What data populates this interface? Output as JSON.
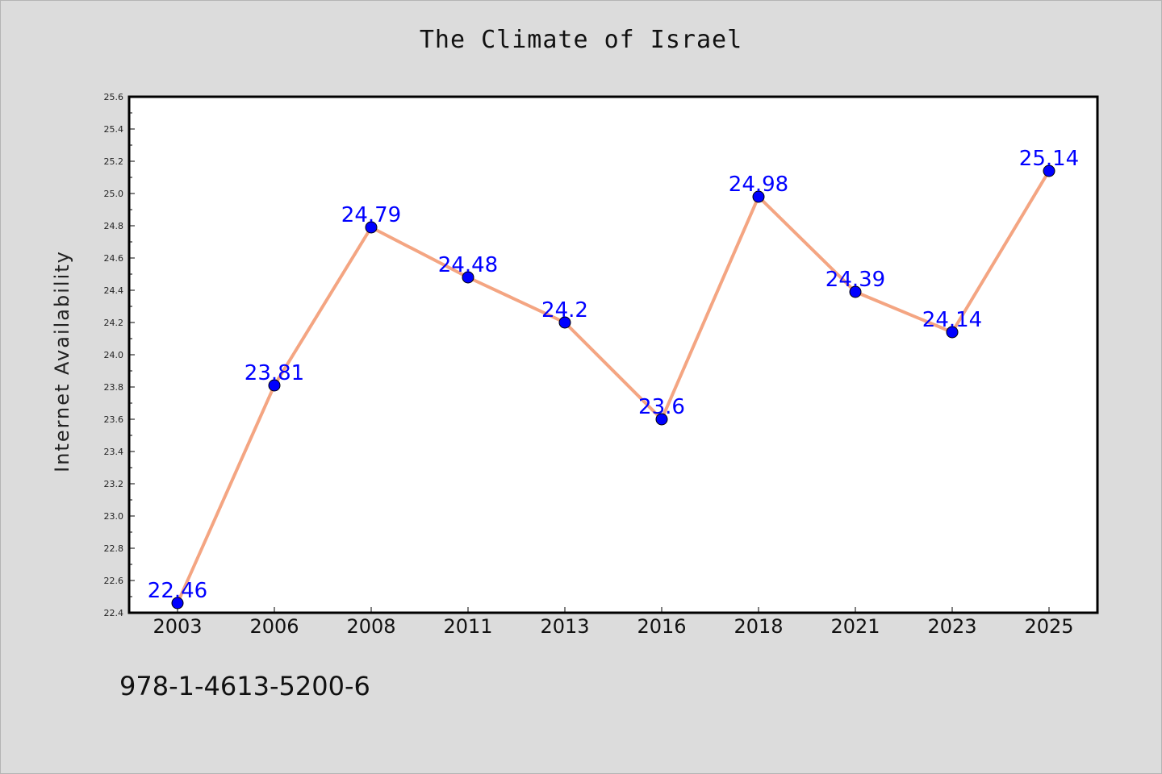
{
  "chart_data": {
    "type": "line",
    "title": "The Climate of Israel",
    "xlabel": "",
    "ylabel": "Internet Availability",
    "categories": [
      "2003",
      "2006",
      "2008",
      "2011",
      "2013",
      "2016",
      "2018",
      "2021",
      "2023",
      "2025"
    ],
    "series": [
      {
        "values": [
          22.46,
          23.81,
          24.79,
          24.48,
          24.2,
          23.6,
          24.98,
          24.39,
          24.14,
          25.14
        ],
        "data_labels": [
          "22.46",
          "23.81",
          "24.79",
          "24.48",
          "24.2",
          "23.6",
          "24.98",
          "24.39",
          "24.14",
          "25.14"
        ],
        "line_color": "#f4a582",
        "marker_color": "#0000ff"
      }
    ],
    "ylim": [
      22.4,
      25.6
    ],
    "yticks": [
      "22.4",
      "22.6",
      "22.8",
      "23.0",
      "23.2",
      "23.4",
      "23.6",
      "23.8",
      "24.0",
      "24.2",
      "24.4",
      "24.6",
      "24.8",
      "25.0",
      "25.2",
      "25.4",
      "25.6"
    ],
    "grid": false,
    "legend": "none"
  },
  "footnote": "978-1-4613-5200-6"
}
